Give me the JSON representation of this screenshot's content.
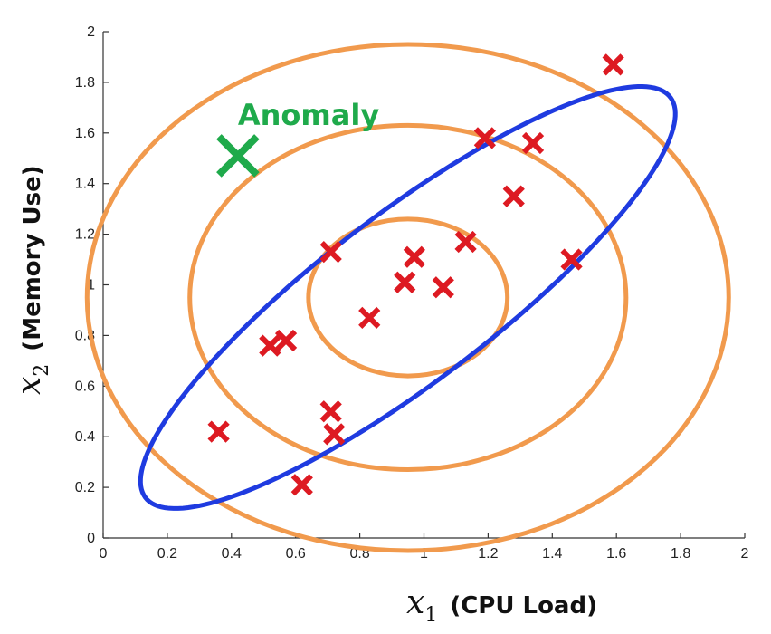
{
  "chart_data": {
    "type": "scatter",
    "xlim": [
      0,
      2
    ],
    "ylim": [
      0,
      2
    ],
    "x_ticks": [
      "0",
      "0.2",
      "0.4",
      "0.6",
      "0.8",
      "1",
      "1.2",
      "1.4",
      "1.6",
      "1.8",
      "2"
    ],
    "y_ticks": [
      "0",
      "0.2",
      "0.4",
      "0.6",
      "0.8",
      "1",
      "1.2",
      "1.4",
      "1.6",
      "1.8",
      "2"
    ],
    "xlabel_math": "x",
    "xlabel_sub": "1",
    "xlabel_text": "(CPU Load)",
    "ylabel_math": "x",
    "ylabel_sub": "2",
    "ylabel_text": "(Memory Use)",
    "grid": false,
    "points": [
      {
        "x": 1.59,
        "y": 1.87
      },
      {
        "x": 1.19,
        "y": 1.58
      },
      {
        "x": 1.34,
        "y": 1.56
      },
      {
        "x": 1.28,
        "y": 1.35
      },
      {
        "x": 1.13,
        "y": 1.17
      },
      {
        "x": 1.46,
        "y": 1.1
      },
      {
        "x": 0.71,
        "y": 1.13
      },
      {
        "x": 0.97,
        "y": 1.11
      },
      {
        "x": 0.94,
        "y": 1.01
      },
      {
        "x": 1.06,
        "y": 0.99
      },
      {
        "x": 0.83,
        "y": 0.87
      },
      {
        "x": 0.52,
        "y": 0.76
      },
      {
        "x": 0.57,
        "y": 0.78
      },
      {
        "x": 0.71,
        "y": 0.5
      },
      {
        "x": 0.72,
        "y": 0.41
      },
      {
        "x": 0.36,
        "y": 0.42
      },
      {
        "x": 0.62,
        "y": 0.21
      }
    ],
    "anomaly": {
      "label": "Anomaly",
      "x": 0.42,
      "y": 1.51
    },
    "circles": {
      "center": [
        0.95,
        0.95
      ],
      "radii": [
        0.31,
        0.68,
        1.0
      ]
    },
    "ellipse": {
      "center": [
        0.95,
        0.95
      ],
      "direction_deg": 45,
      "semi_major": 1.14,
      "semi_minor": 0.3
    },
    "colors": {
      "points": "#dd1a22",
      "anomaly": "#1faa4b",
      "circles": "#f19a4d",
      "ellipse": "#1f3be0",
      "axis": "#333333"
    }
  }
}
